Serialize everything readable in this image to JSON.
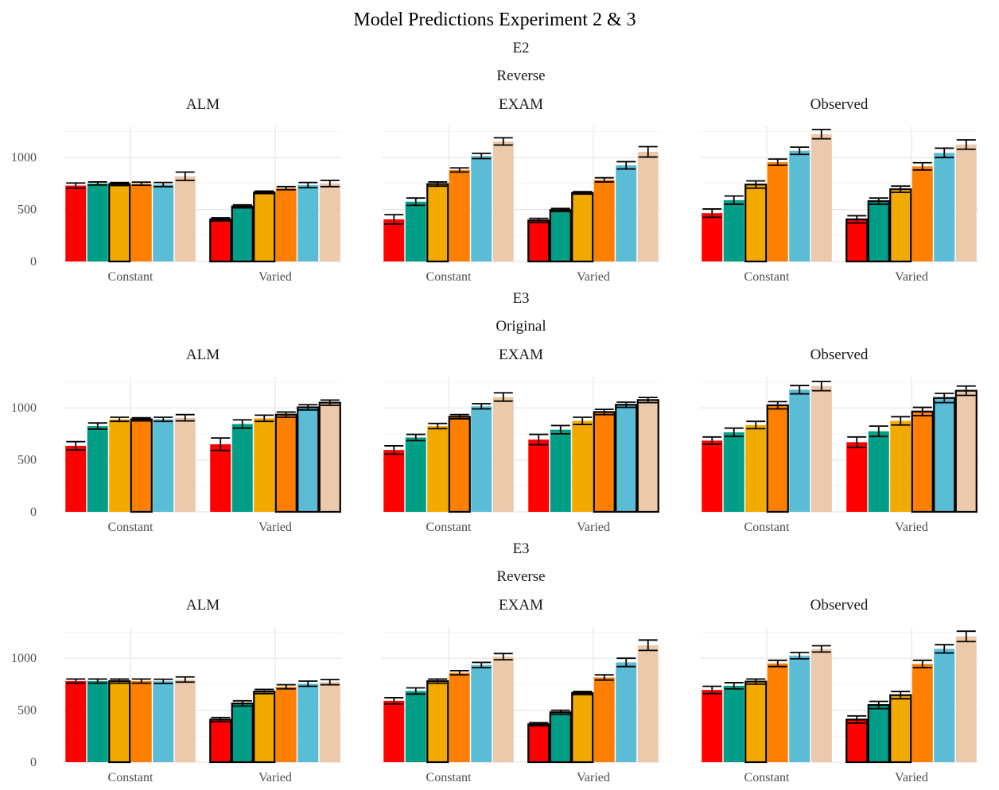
{
  "chart_data": {
    "type": "bar",
    "title": "Model Predictions Experiment 2 & 3",
    "xlabel": "",
    "ylabel": "",
    "ylim": [
      0,
      1300
    ],
    "yticks": [
      0,
      500,
      1000
    ],
    "grid": true,
    "legend": "none",
    "categories": [
      "Constant",
      "Varied"
    ],
    "series_colors": [
      "#ff0000",
      "#009e87",
      "#f2aa00",
      "#ff8000",
      "#5bbcd6",
      "#ecc9ab"
    ],
    "panels": [
      {
        "row_label_top": "E2",
        "row_label_bottom": "Reverse",
        "facets": [
          {
            "name": "ALM",
            "values": [
              [
                730,
                750,
                745,
                748,
                740,
                820
              ],
              [
                405,
                530,
                665,
                705,
                735,
                750
              ]
            ],
            "error": [
              [
                25,
                15,
                15,
                15,
                20,
                40
              ],
              [
                15,
                15,
                12,
                15,
                25,
                30
              ]
            ],
            "outlined": [
              [
                false,
                false,
                true,
                false,
                false,
                false
              ],
              [
                true,
                true,
                true,
                false,
                false,
                false
              ]
            ]
          },
          {
            "name": "EXAM",
            "values": [
              [
                405,
                575,
                745,
                880,
                1015,
                1155
              ],
              [
                395,
                495,
                660,
                785,
                925,
                1055
              ]
            ],
            "error": [
              [
                45,
                35,
                20,
                20,
                25,
                35
              ],
              [
                20,
                15,
                12,
                20,
                35,
                50
              ]
            ],
            "outlined": [
              [
                false,
                false,
                true,
                false,
                false,
                false
              ],
              [
                true,
                true,
                true,
                false,
                false,
                false
              ]
            ]
          },
          {
            "name": "Observed",
            "values": [
              [
                465,
                590,
                740,
                955,
                1065,
                1225
              ],
              [
                405,
                580,
                695,
                915,
                1045,
                1125
              ]
            ],
            "error": [
              [
                40,
                40,
                35,
                30,
                35,
                45
              ],
              [
                35,
                30,
                30,
                35,
                45,
                45
              ]
            ],
            "outlined": [
              [
                false,
                false,
                true,
                false,
                false,
                false
              ],
              [
                true,
                true,
                true,
                false,
                false,
                false
              ]
            ]
          }
        ]
      },
      {
        "row_label_top": "E3",
        "row_label_bottom": "Original",
        "facets": [
          {
            "name": "ALM",
            "values": [
              [
                635,
                825,
                890,
                890,
                890,
                905
              ],
              [
                650,
                845,
                900,
                935,
                1005,
                1050
              ]
            ],
            "error": [
              [
                40,
                30,
                20,
                15,
                20,
                30
              ],
              [
                60,
                40,
                30,
                25,
                25,
                25
              ]
            ],
            "outlined": [
              [
                false,
                false,
                false,
                true,
                false,
                false
              ],
              [
                false,
                false,
                false,
                true,
                true,
                true
              ]
            ]
          },
          {
            "name": "EXAM",
            "values": [
              [
                595,
                715,
                825,
                915,
                1015,
                1105
              ],
              [
                695,
                790,
                875,
                960,
                1030,
                1075
              ]
            ],
            "error": [
              [
                40,
                30,
                25,
                20,
                25,
                40
              ],
              [
                50,
                40,
                35,
                25,
                25,
                25
              ]
            ],
            "outlined": [
              [
                false,
                false,
                false,
                true,
                false,
                false
              ],
              [
                false,
                false,
                false,
                true,
                true,
                true
              ]
            ]
          },
          {
            "name": "Observed",
            "values": [
              [
                685,
                765,
                835,
                1025,
                1175,
                1210
              ],
              [
                670,
                775,
                875,
                965,
                1095,
                1165
              ]
            ],
            "error": [
              [
                35,
                40,
                35,
                35,
                40,
                45
              ],
              [
                50,
                50,
                40,
                40,
                45,
                45
              ]
            ],
            "outlined": [
              [
                false,
                false,
                false,
                true,
                false,
                false
              ],
              [
                false,
                false,
                false,
                true,
                true,
                true
              ]
            ]
          }
        ]
      },
      {
        "row_label_top": "E3",
        "row_label_bottom": "Reverse",
        "facets": [
          {
            "name": "ALM",
            "values": [
              [
                780,
                780,
                780,
                780,
                778,
                795
              ],
              [
                410,
                565,
                680,
                725,
                755,
                770
              ]
            ],
            "error": [
              [
                20,
                20,
                20,
                20,
                20,
                25
              ],
              [
                20,
                25,
                20,
                20,
                25,
                25
              ]
            ],
            "outlined": [
              [
                false,
                false,
                true,
                false,
                false,
                false
              ],
              [
                true,
                true,
                true,
                false,
                false,
                false
              ]
            ]
          },
          {
            "name": "EXAM",
            "values": [
              [
                590,
                685,
                780,
                860,
                935,
                1015
              ],
              [
                365,
                480,
                665,
                815,
                960,
                1125
              ]
            ],
            "error": [
              [
                30,
                30,
                20,
                20,
                25,
                30
              ],
              [
                15,
                20,
                15,
                25,
                40,
                50
              ]
            ],
            "outlined": [
              [
                false,
                false,
                true,
                false,
                false,
                false
              ],
              [
                true,
                true,
                true,
                false,
                false,
                false
              ]
            ]
          },
          {
            "name": "Observed",
            "values": [
              [
                695,
                735,
                775,
                950,
                1025,
                1090
              ],
              [
                410,
                550,
                645,
                945,
                1090,
                1210
              ]
            ],
            "error": [
              [
                35,
                30,
                25,
                30,
                30,
                30
              ],
              [
                35,
                35,
                35,
                35,
                40,
                50
              ]
            ],
            "outlined": [
              [
                false,
                false,
                true,
                false,
                false,
                false
              ],
              [
                true,
                true,
                true,
                false,
                false,
                false
              ]
            ]
          }
        ]
      }
    ]
  }
}
